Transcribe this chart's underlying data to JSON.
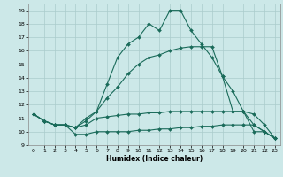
{
  "xlabel": "Humidex (Indice chaleur)",
  "background_color": "#cce8e8",
  "grid_color": "#aacccc",
  "line_color": "#1a6b5a",
  "xlim": [
    -0.5,
    23.5
  ],
  "ylim": [
    9,
    19.5
  ],
  "xticks": [
    0,
    1,
    2,
    3,
    4,
    5,
    6,
    7,
    8,
    9,
    10,
    11,
    12,
    13,
    14,
    15,
    16,
    17,
    18,
    19,
    20,
    21,
    22,
    23
  ],
  "yticks": [
    9,
    10,
    11,
    12,
    13,
    14,
    15,
    16,
    17,
    18,
    19
  ],
  "lines": [
    [
      11.3,
      10.8,
      10.5,
      10.5,
      9.8,
      9.8,
      10.0,
      10.0,
      10.0,
      10.0,
      10.1,
      10.1,
      10.2,
      10.2,
      10.3,
      10.3,
      10.4,
      10.4,
      10.5,
      10.5,
      10.5,
      10.5,
      10.0,
      9.5
    ],
    [
      11.3,
      10.8,
      10.5,
      10.5,
      10.3,
      10.5,
      11.0,
      11.1,
      11.2,
      11.3,
      11.3,
      11.4,
      11.4,
      11.5,
      11.5,
      11.5,
      11.5,
      11.5,
      11.5,
      11.5,
      11.5,
      11.3,
      10.5,
      9.5
    ],
    [
      11.3,
      10.8,
      10.5,
      10.5,
      10.3,
      10.8,
      11.5,
      12.5,
      13.3,
      14.3,
      15.0,
      15.5,
      15.7,
      16.0,
      16.2,
      16.3,
      16.3,
      16.3,
      14.1,
      13.0,
      11.5,
      10.5,
      10.0,
      9.5
    ],
    [
      11.3,
      10.8,
      10.5,
      10.5,
      10.3,
      11.0,
      11.5,
      13.5,
      15.5,
      16.5,
      17.0,
      18.0,
      17.5,
      19.0,
      19.0,
      17.5,
      16.5,
      15.5,
      14.1,
      11.5,
      11.5,
      10.0,
      10.0,
      9.5
    ]
  ]
}
